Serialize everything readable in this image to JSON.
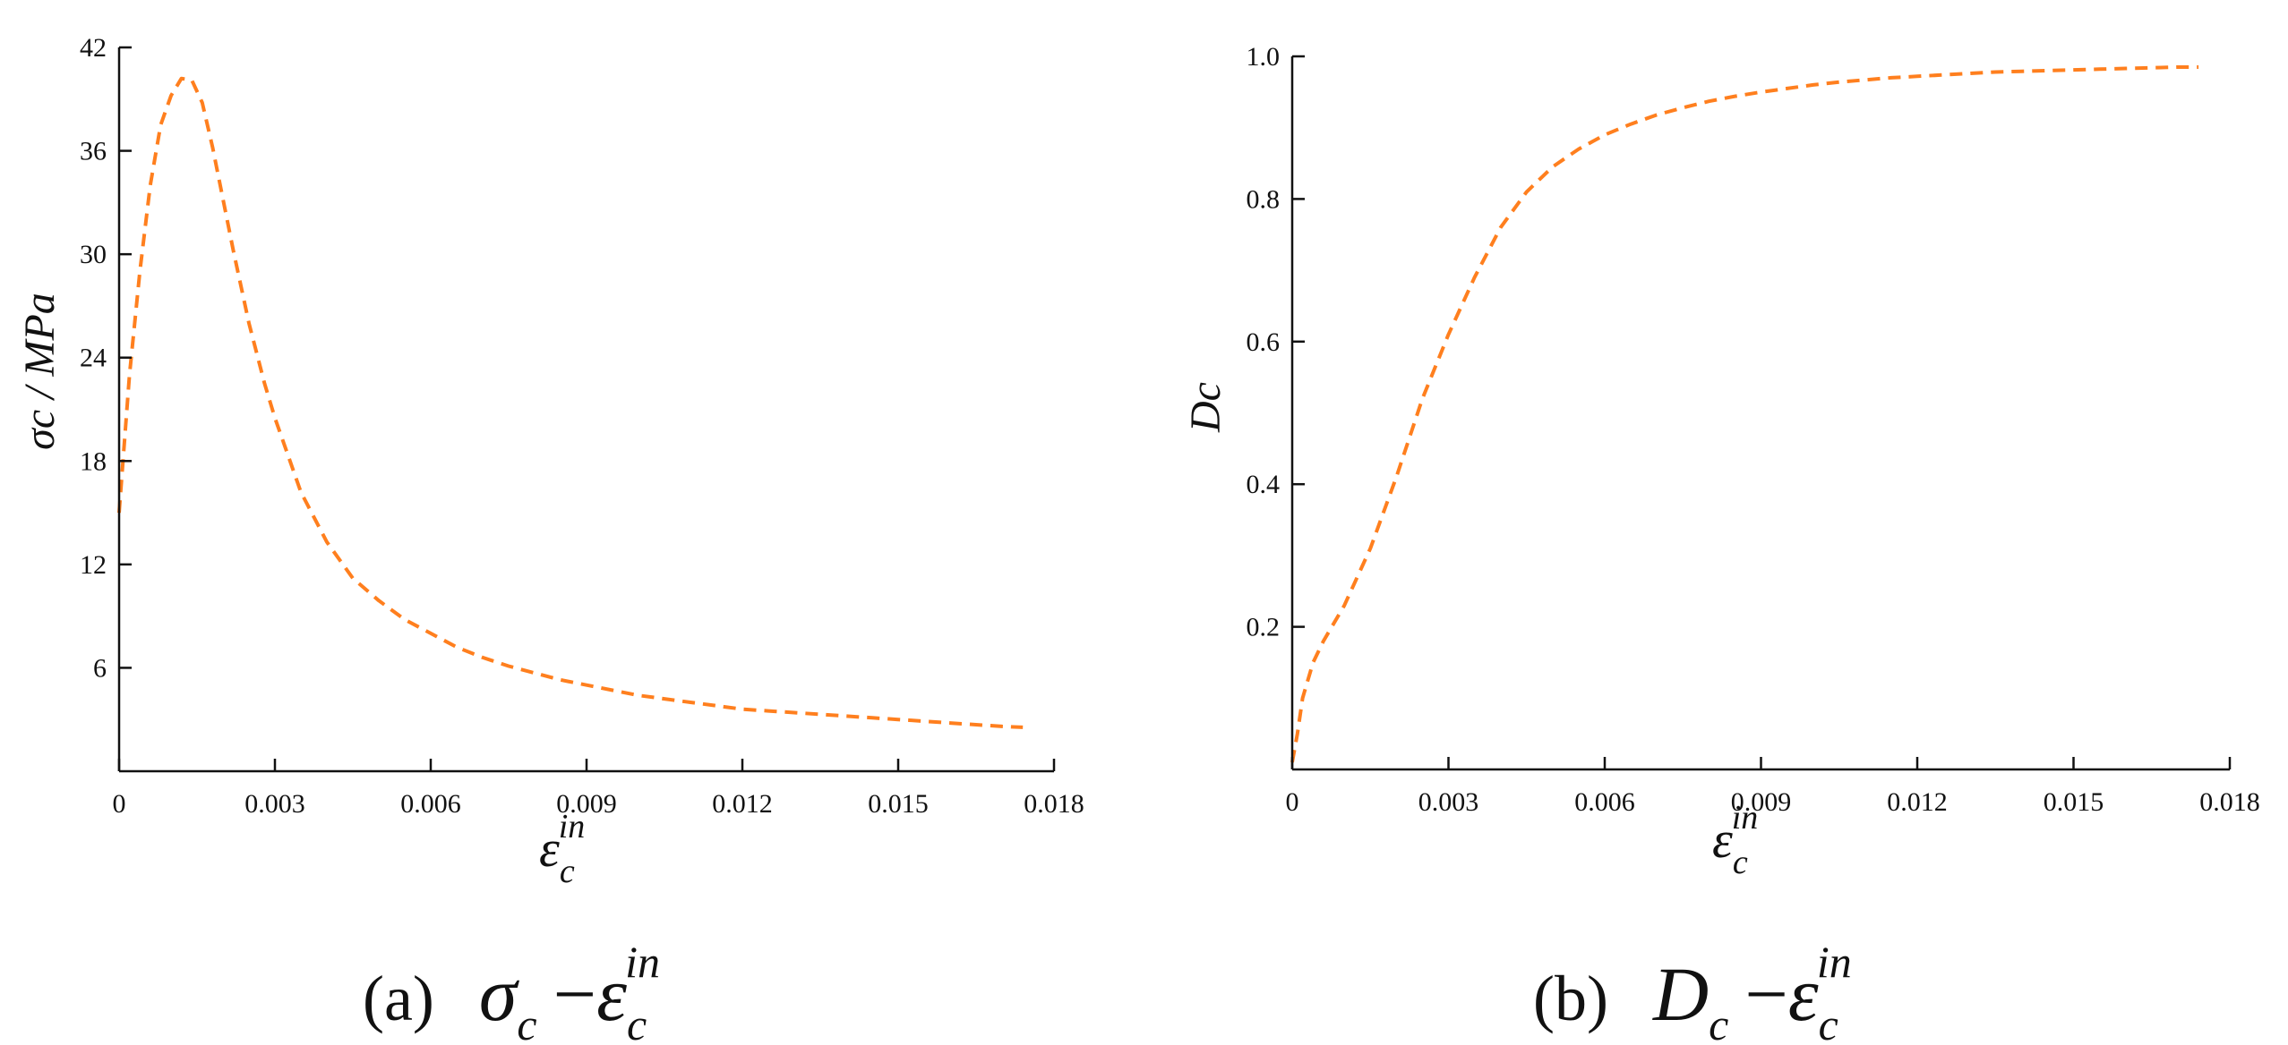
{
  "colors": {
    "series": "#FF7F1E",
    "axis": "#111111",
    "background": "#ffffff"
  },
  "chart_data": [
    {
      "type": "line",
      "panel": "a",
      "caption": {
        "letter": "(a)",
        "y_symbol": "σ",
        "y_sub": "c",
        "op": "−",
        "x_symbol": "ε",
        "x_sub": "c",
        "x_sup": "in"
      },
      "ylabel": "σc / MPa",
      "xlabel": {
        "symbol": "ε",
        "sub": "c",
        "sup": "in"
      },
      "xlim": [
        0,
        0.018
      ],
      "ylim": [
        0,
        42
      ],
      "xticks": [
        "0",
        "0.003",
        "0.006",
        "0.009",
        "0.012",
        "0.015",
        "0.018"
      ],
      "yticks": [
        "6",
        "12",
        "18",
        "24",
        "30",
        "36",
        "42"
      ],
      "line_style": "dashed",
      "series": [
        {
          "x": [
            0,
            0.0001,
            0.0002,
            0.0004,
            0.0006,
            0.0008,
            0.001,
            0.0012,
            0.0014,
            0.0016,
            0.0018,
            0.002,
            0.0022,
            0.0025,
            0.0028,
            0.003,
            0.0035,
            0.004,
            0.0045,
            0.005,
            0.0055,
            0.006,
            0.0065,
            0.007,
            0.0075,
            0.008,
            0.0085,
            0.009,
            0.0095,
            0.01,
            0.0105,
            0.011,
            0.0115,
            0.012,
            0.0125,
            0.013,
            0.0135,
            0.014,
            0.0145,
            0.015,
            0.0155,
            0.016,
            0.0165,
            0.017,
            0.0174
          ],
          "y": [
            15,
            19,
            23,
            29,
            34,
            37.5,
            39.2,
            40.2,
            40.1,
            38.8,
            36.2,
            33.2,
            30.2,
            26,
            22.5,
            20.5,
            16.2,
            13.3,
            11.2,
            9.9,
            8.8,
            8,
            7.2,
            6.6,
            6.1,
            5.7,
            5.3,
            5,
            4.7,
            4.4,
            4.2,
            4,
            3.8,
            3.6,
            3.5,
            3.4,
            3.3,
            3.2,
            3.1,
            3,
            2.9,
            2.8,
            2.7,
            2.6,
            2.55
          ]
        }
      ]
    },
    {
      "type": "line",
      "panel": "b",
      "caption": {
        "letter": "(b)",
        "y_symbol": "D",
        "y_sub": "c",
        "op": "−",
        "x_symbol": "ε",
        "x_sub": "c",
        "x_sup": "in"
      },
      "ylabel": "Dc",
      "xlabel": {
        "symbol": "ε",
        "sub": "c",
        "sup": "in"
      },
      "xlim": [
        0,
        0.018
      ],
      "ylim": [
        0,
        1.0
      ],
      "xticks": [
        "0",
        "0.003",
        "0.006",
        "0.009",
        "0.012",
        "0.015",
        "0.018"
      ],
      "yticks": [
        "0.2",
        "0.4",
        "0.6",
        "0.8",
        "1.0"
      ],
      "line_style": "dashed",
      "series": [
        {
          "x": [
            0,
            0.0001,
            0.0002,
            0.0004,
            0.0006,
            0.001,
            0.0015,
            0.002,
            0.0025,
            0.003,
            0.0035,
            0.004,
            0.0045,
            0.005,
            0.0055,
            0.006,
            0.0065,
            0.007,
            0.0075,
            0.008,
            0.0085,
            0.009,
            0.0095,
            0.01,
            0.0105,
            0.011,
            0.0115,
            0.012,
            0.0125,
            0.013,
            0.0135,
            0.014,
            0.0145,
            0.015,
            0.0155,
            0.016,
            0.0165,
            0.017,
            0.0174
          ],
          "y": [
            0.01,
            0.05,
            0.1,
            0.15,
            0.18,
            0.23,
            0.31,
            0.41,
            0.52,
            0.61,
            0.69,
            0.76,
            0.81,
            0.845,
            0.87,
            0.89,
            0.905,
            0.918,
            0.928,
            0.937,
            0.944,
            0.95,
            0.955,
            0.96,
            0.964,
            0.967,
            0.97,
            0.972,
            0.974,
            0.976,
            0.978,
            0.979,
            0.98,
            0.981,
            0.982,
            0.983,
            0.984,
            0.985,
            0.985
          ]
        }
      ]
    }
  ]
}
